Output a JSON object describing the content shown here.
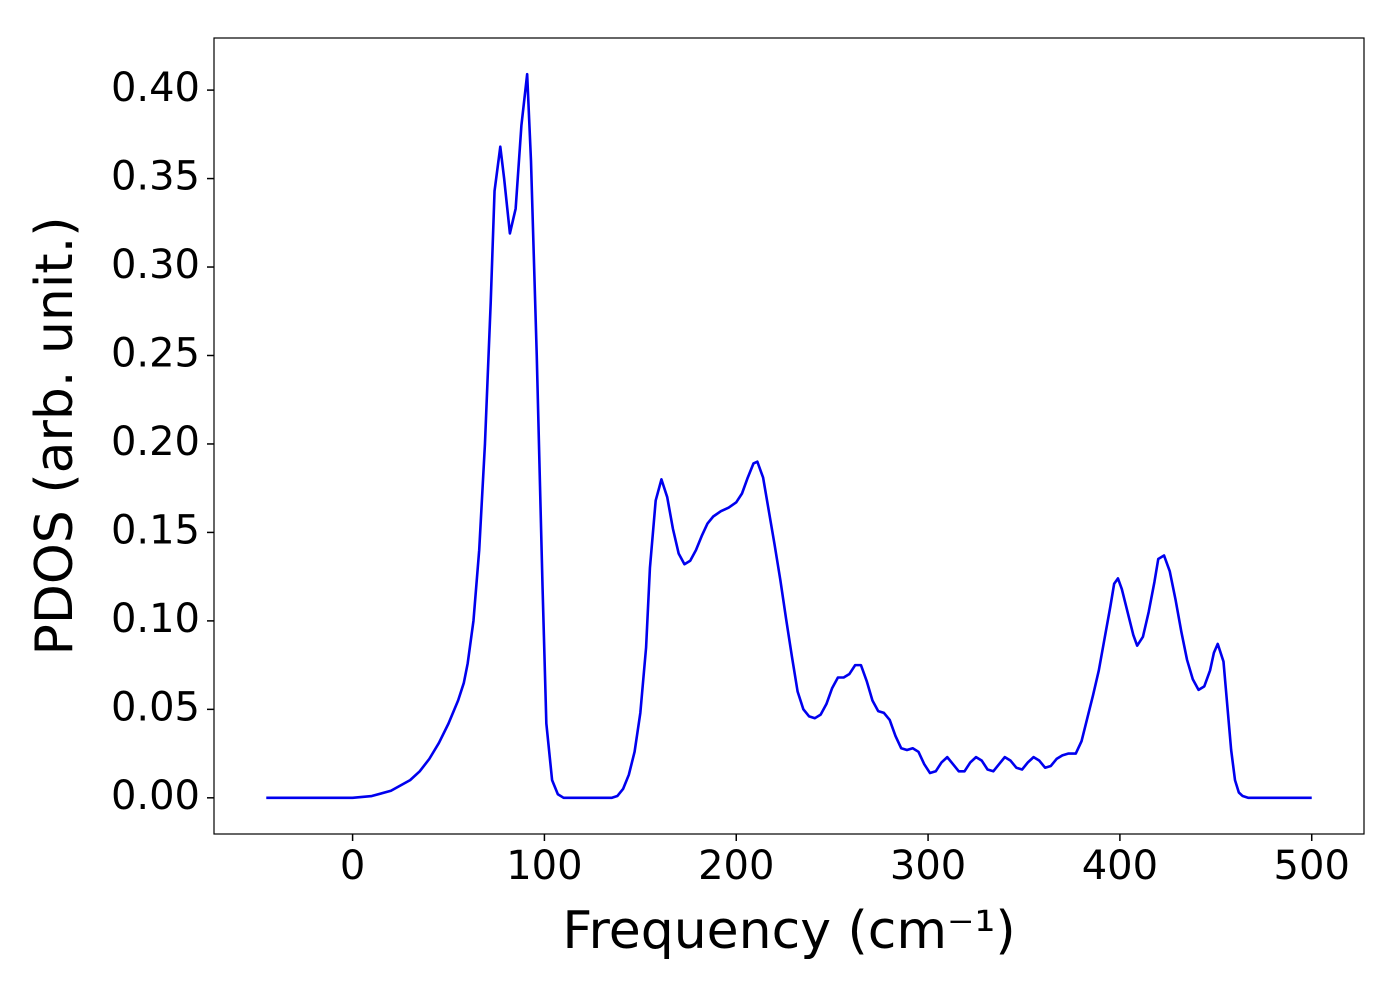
{
  "chart_data": {
    "type": "line",
    "xlabel": "Frequency (cm⁻¹)",
    "ylabel": "PDOS (arb. unit.)",
    "color": "#0000ee",
    "x": [
      -45,
      -30,
      -15,
      0,
      10,
      20,
      30,
      35,
      40,
      45,
      50,
      55,
      58,
      60,
      63,
      66,
      69,
      72,
      74,
      77,
      79,
      82,
      85,
      88,
      91,
      93,
      96,
      99,
      101,
      104,
      107,
      110,
      135,
      138,
      141,
      144,
      147,
      150,
      153,
      155,
      158,
      161,
      164,
      167,
      170,
      173,
      176,
      179,
      182,
      185,
      188,
      192,
      196,
      200,
      203,
      206,
      209,
      211,
      214,
      217,
      220,
      223,
      226,
      229,
      232,
      235,
      238,
      241,
      244,
      247,
      250,
      253,
      256,
      259,
      262,
      265,
      268,
      271,
      274,
      277,
      280,
      283,
      286,
      289,
      292,
      295,
      298,
      301,
      304,
      307,
      310,
      313,
      316,
      319,
      322,
      325,
      328,
      331,
      334,
      337,
      340,
      343,
      346,
      349,
      352,
      355,
      358,
      361,
      364,
      367,
      370,
      373,
      377,
      380,
      383,
      386,
      389,
      392,
      395,
      397,
      399,
      401,
      404,
      407,
      409,
      412,
      415,
      418,
      420,
      423,
      426,
      429,
      432,
      435,
      438,
      441,
      444,
      447,
      449,
      451,
      454,
      456,
      458,
      460,
      462,
      464,
      467,
      480,
      500
    ],
    "values": [
      0,
      0,
      0,
      0,
      0.001,
      0.004,
      0.01,
      0.015,
      0.022,
      0.031,
      0.042,
      0.055,
      0.065,
      0.076,
      0.1,
      0.14,
      0.2,
      0.28,
      0.343,
      0.368,
      0.35,
      0.319,
      0.333,
      0.38,
      0.409,
      0.36,
      0.25,
      0.12,
      0.042,
      0.01,
      0.002,
      0,
      0,
      0.001,
      0.005,
      0.013,
      0.026,
      0.048,
      0.085,
      0.13,
      0.168,
      0.18,
      0.17,
      0.152,
      0.138,
      0.132,
      0.134,
      0.14,
      0.148,
      0.155,
      0.159,
      0.162,
      0.164,
      0.167,
      0.172,
      0.181,
      0.189,
      0.19,
      0.181,
      0.162,
      0.143,
      0.123,
      0.101,
      0.08,
      0.06,
      0.05,
      0.046,
      0.045,
      0.047,
      0.053,
      0.062,
      0.068,
      0.068,
      0.07,
      0.075,
      0.075,
      0.066,
      0.055,
      0.049,
      0.048,
      0.044,
      0.035,
      0.028,
      0.027,
      0.028,
      0.026,
      0.019,
      0.014,
      0.015,
      0.02,
      0.023,
      0.019,
      0.015,
      0.015,
      0.02,
      0.023,
      0.021,
      0.016,
      0.015,
      0.019,
      0.023,
      0.021,
      0.017,
      0.016,
      0.02,
      0.023,
      0.021,
      0.017,
      0.018,
      0.022,
      0.024,
      0.025,
      0.025,
      0.032,
      0.045,
      0.058,
      0.072,
      0.09,
      0.108,
      0.121,
      0.124,
      0.118,
      0.105,
      0.092,
      0.086,
      0.091,
      0.105,
      0.122,
      0.135,
      0.137,
      0.128,
      0.112,
      0.094,
      0.078,
      0.067,
      0.061,
      0.063,
      0.072,
      0.082,
      0.087,
      0.077,
      0.052,
      0.027,
      0.01,
      0.003,
      0.001,
      0,
      0,
      0
    ],
    "xlim": [
      -72.25,
      527.25
    ],
    "ylim": [
      -0.02045,
      0.42945
    ],
    "xticks": [
      0,
      100,
      200,
      300,
      400,
      500
    ],
    "yticks": [
      {
        "value": 0,
        "label": "0.00"
      },
      0.05,
      {
        "value": 0.1,
        "label": "0.10"
      },
      0.15,
      {
        "value": 0.2,
        "label": "0.20"
      },
      0.25,
      {
        "value": 0.3,
        "label": "0.30"
      },
      0.35,
      {
        "value": 0.4,
        "label": "0.40"
      }
    ],
    "grid": false
  }
}
